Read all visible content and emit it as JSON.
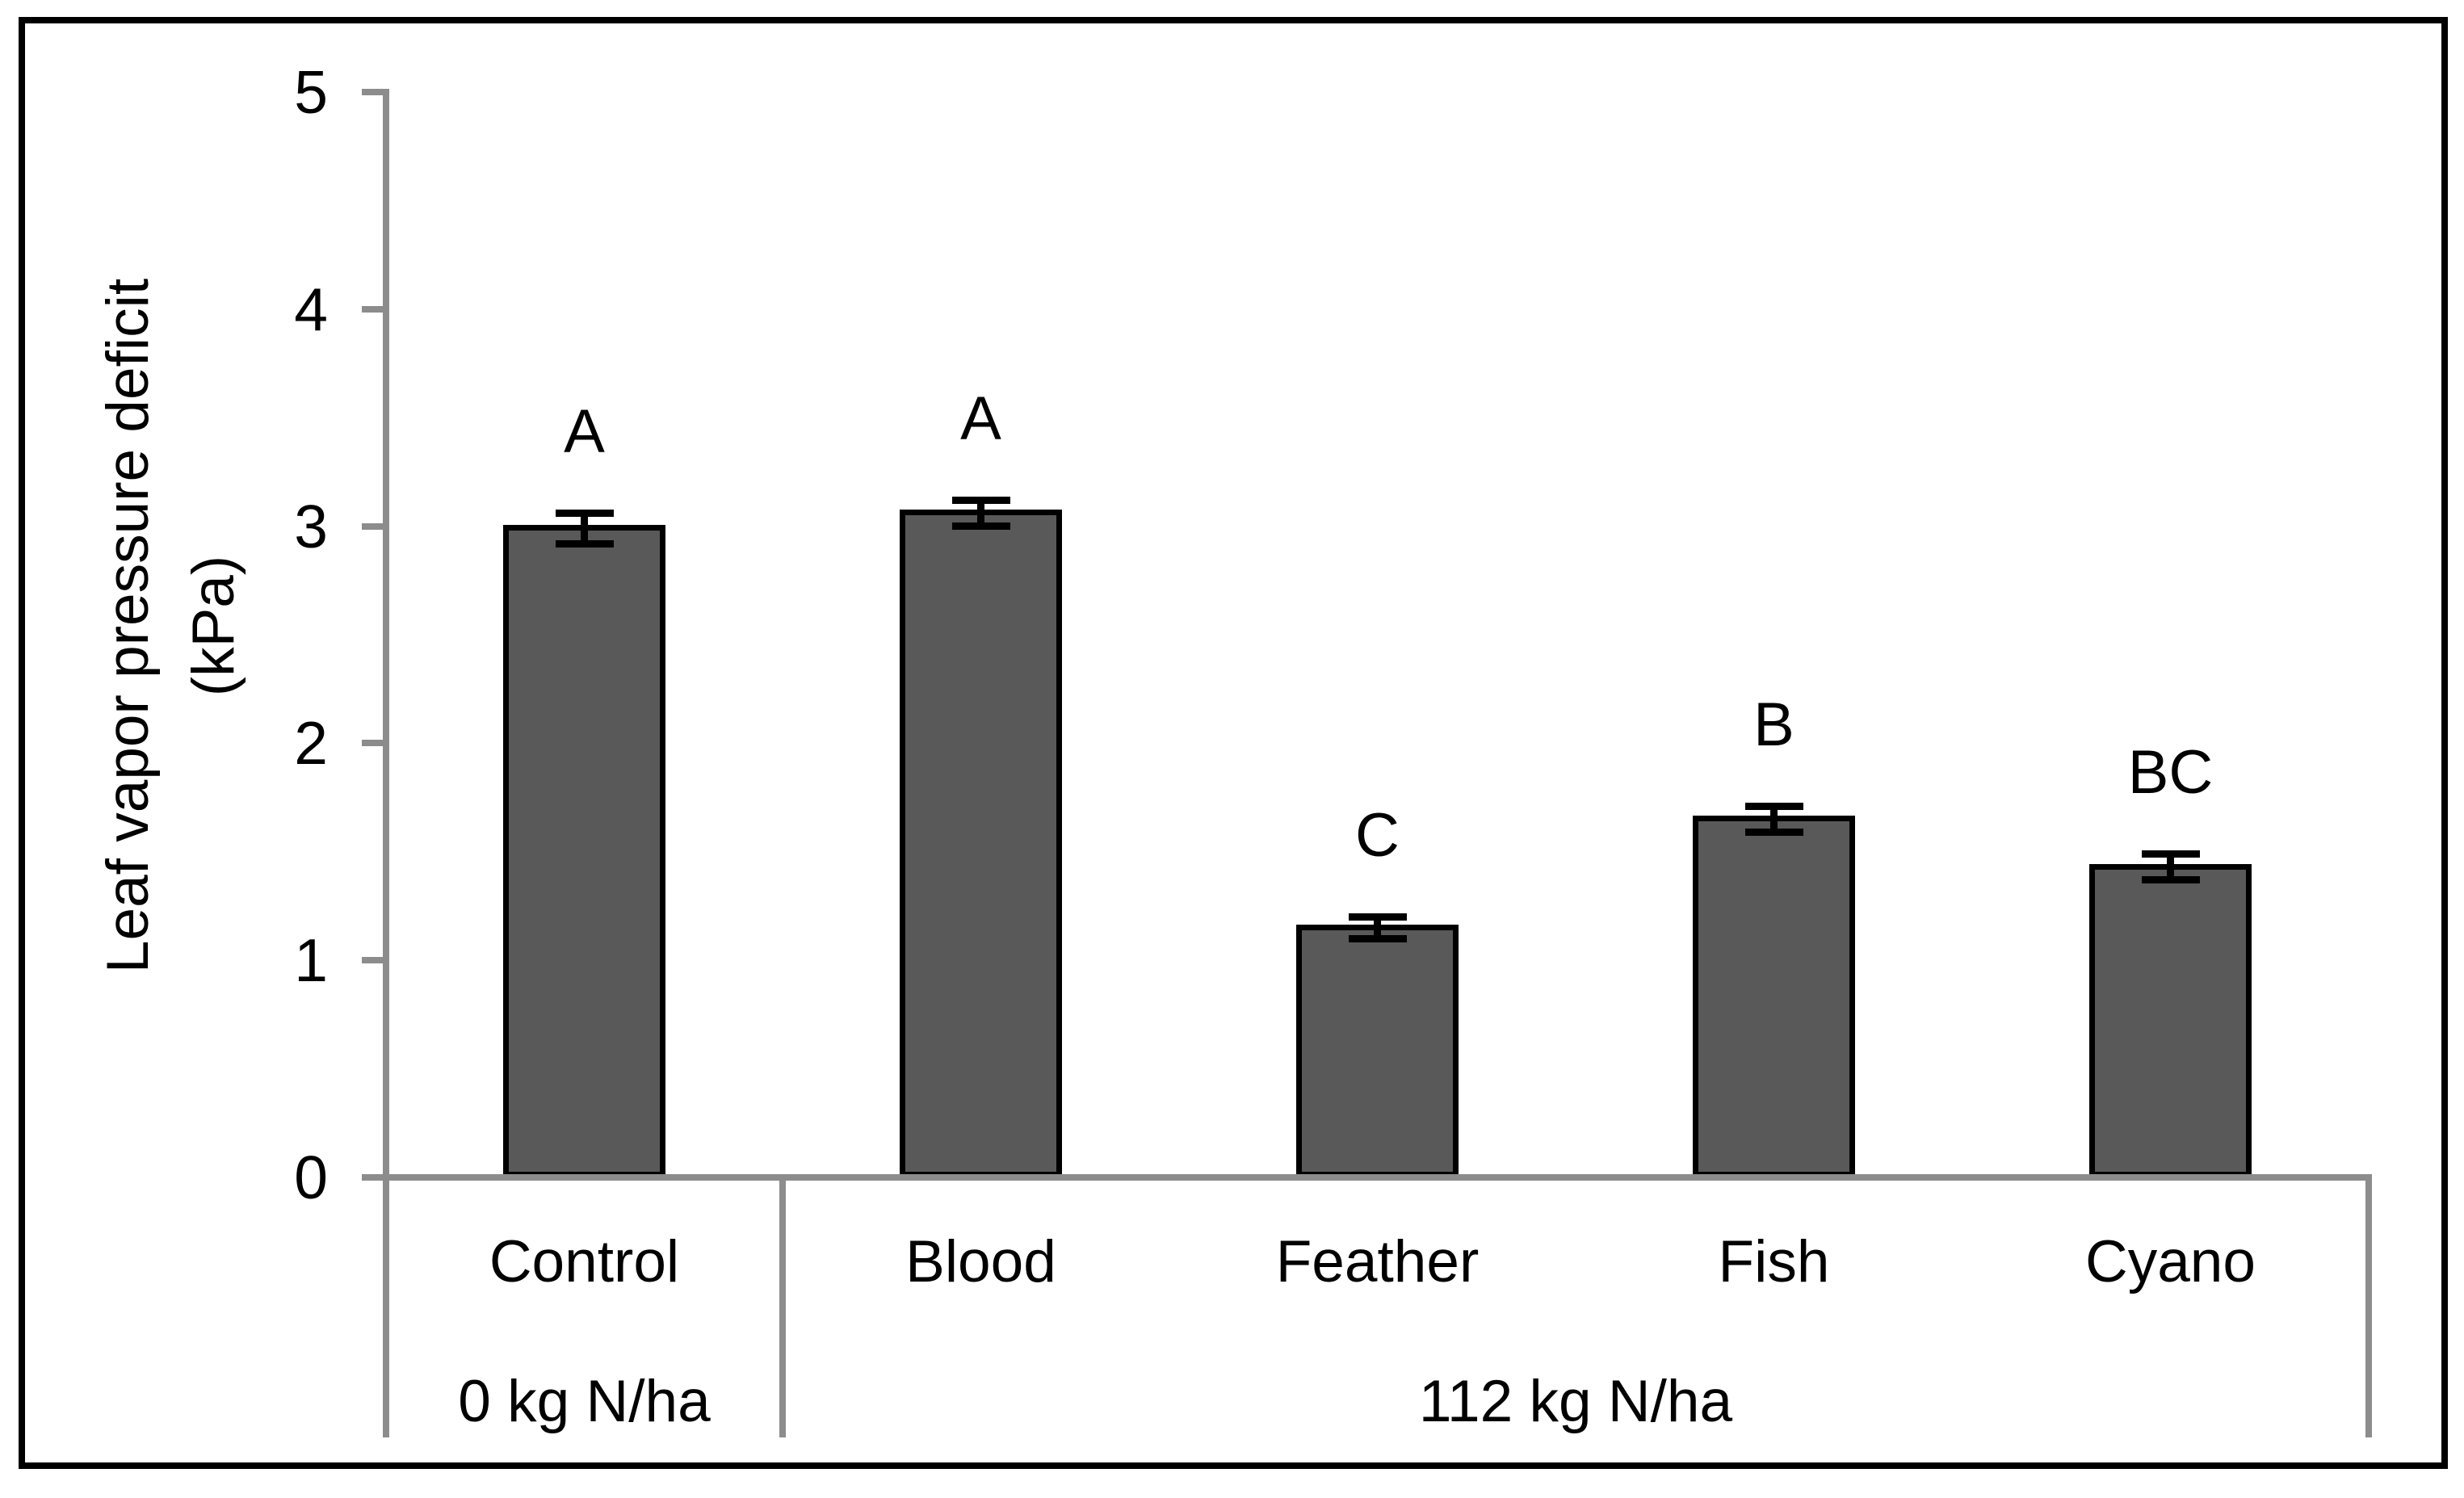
{
  "chart_data": {
    "type": "bar",
    "title": "",
    "ylabel_line1": "Leaf vapor pressure deficit",
    "ylabel_line2": "(kPa)",
    "ylim": [
      0,
      5
    ],
    "yticks": [
      0,
      1,
      2,
      3,
      4,
      5
    ],
    "grid": false,
    "legend_position": "none",
    "categories": [
      "Control",
      "Blood",
      "Feather",
      "Fish",
      "Cyano"
    ],
    "values": [
      2.99,
      3.06,
      1.15,
      1.65,
      1.43
    ],
    "error_bars": [
      0.07,
      0.06,
      0.05,
      0.06,
      0.06
    ],
    "significance_letters": [
      "A",
      "A",
      "C",
      "B",
      "BC"
    ],
    "groups": [
      {
        "label": "0 kg N/ha",
        "span": [
          0,
          0
        ]
      },
      {
        "label": "112 kg N/ha",
        "span": [
          1,
          4
        ]
      }
    ],
    "colors": {
      "bar_fill": "#595959",
      "bar_edge": "#000000",
      "axis_line": "#8c8c8c",
      "error_bar": "#000000",
      "text": "#000000",
      "figure_border": "#000000",
      "background": "#ffffff"
    }
  }
}
